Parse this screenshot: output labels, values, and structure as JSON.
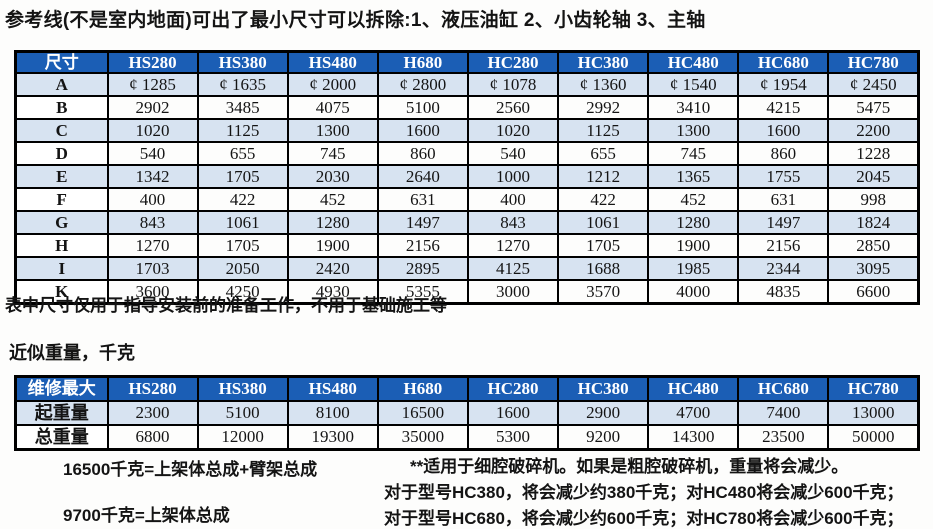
{
  "page": {
    "title": "参考线(不是室内地面)可出了最小尺寸可以拆除:1、液压油缸 2、小齿轮轴 3、主轴",
    "dim_note": "表中尺寸仅用于指导安装前的准备工作，不用于基础施工等",
    "weight_caption": "近似重量，千克"
  },
  "models": [
    "HS280",
    "HS380",
    "HS480",
    "H680",
    "HC280",
    "HC380",
    "HC480",
    "HC680",
    "HC780"
  ],
  "dim_table": {
    "corner_label": "尺寸",
    "rows": [
      {
        "label": "A",
        "values": [
          "¢ 1285",
          "¢ 1635",
          "¢ 2000",
          "¢ 2800",
          "¢ 1078",
          "¢ 1360",
          "¢ 1540",
          "¢ 1954",
          "¢ 2450"
        ]
      },
      {
        "label": "B",
        "values": [
          "2902",
          "3485",
          "4075",
          "5100",
          "2560",
          "2992",
          "3410",
          "4215",
          "5475"
        ]
      },
      {
        "label": "C",
        "values": [
          "1020",
          "1125",
          "1300",
          "1600",
          "1020",
          "1125",
          "1300",
          "1600",
          "2200"
        ]
      },
      {
        "label": "D",
        "values": [
          "540",
          "655",
          "745",
          "860",
          "540",
          "655",
          "745",
          "860",
          "1228"
        ]
      },
      {
        "label": "E",
        "values": [
          "1342",
          "1705",
          "2030",
          "2640",
          "1000",
          "1212",
          "1365",
          "1755",
          "2045"
        ]
      },
      {
        "label": "F",
        "values": [
          "400",
          "422",
          "452",
          "631",
          "400",
          "422",
          "452",
          "631",
          "998"
        ]
      },
      {
        "label": "G",
        "values": [
          "843",
          "1061",
          "1280",
          "1497",
          "843",
          "1061",
          "1280",
          "1497",
          "1824"
        ]
      },
      {
        "label": "H",
        "values": [
          "1270",
          "1705",
          "1900",
          "2156",
          "1270",
          "1705",
          "1900",
          "2156",
          "2850"
        ]
      },
      {
        "label": "I",
        "values": [
          "1703",
          "2050",
          "2420",
          "2895",
          "4125",
          "1688",
          "1985",
          "2344",
          "3095"
        ]
      },
      {
        "label": "K",
        "values": [
          "3600",
          "4250",
          "4930",
          "5355",
          "3000",
          "3570",
          "4000",
          "4835",
          "6600"
        ]
      }
    ]
  },
  "weight_table": {
    "corner_label": "维修最大",
    "rows": [
      {
        "label": "起重量",
        "values": [
          "2300",
          "5100",
          "8100",
          "16500",
          "1600",
          "2900",
          "4700",
          "7400",
          "13000"
        ]
      },
      {
        "label": "总重量",
        "values": [
          "6800",
          "12000",
          "19300",
          "35000",
          "5300",
          "9200",
          "14300",
          "23500",
          "50000"
        ]
      }
    ]
  },
  "footnotes": {
    "left": [
      "16500千克=上架体总成+臂架总成",
      "9700千克=上架体总成"
    ],
    "right": [
      "**适用于细腔破碎机。如果是粗腔破碎机，重量将会减少。",
      "对于型号HC380，将会减少约380千克；对HC480将会减少600千克；",
      "对于型号HC680，将会减少约600千克；对HC780将会减少600千克；"
    ]
  },
  "colors": {
    "header_bg": "#1b5eb5",
    "alt_row_bg": "#d7e3f1",
    "border": "#000000"
  }
}
